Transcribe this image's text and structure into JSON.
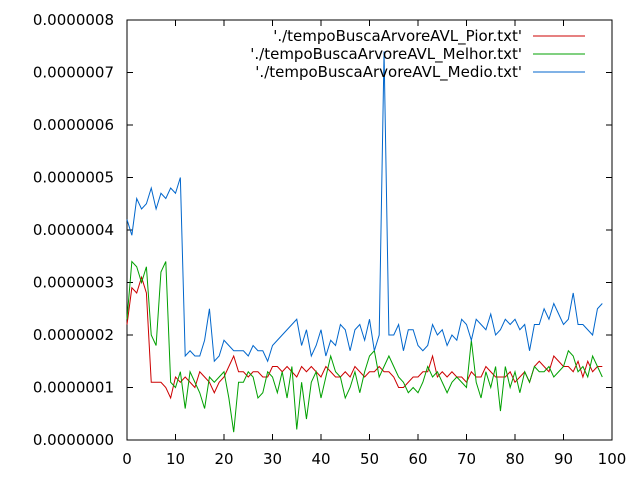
{
  "chart_data": {
    "type": "line",
    "title": "",
    "xlabel": "",
    "ylabel": "",
    "xlim": [
      0,
      100
    ],
    "ylim": [
      0,
      8e-07
    ],
    "x_ticks": [
      0,
      10,
      20,
      30,
      40,
      50,
      60,
      70,
      80,
      90,
      100
    ],
    "x_tick_labels": [
      "0",
      "10",
      "20",
      "30",
      "40",
      "50",
      "60",
      "70",
      "80",
      "90",
      "100"
    ],
    "y_ticks": [
      0,
      1e-07,
      2e-07,
      3e-07,
      4e-07,
      5e-07,
      6e-07,
      7e-07,
      8e-07
    ],
    "y_tick_labels": [
      "0.0000000",
      "0.0000001",
      "0.0000002",
      "0.0000003",
      "0.0000004",
      "0.0000005",
      "0.0000006",
      "0.0000007",
      "0.0000008"
    ],
    "grid": false,
    "legend_position": "top-right",
    "series": [
      {
        "name": "'./tempoBuscaArvoreAVL_Pior.txt'",
        "color": "#cc0000",
        "x": [
          0,
          1,
          2,
          3,
          4,
          5,
          6,
          7,
          8,
          9,
          10,
          11,
          12,
          13,
          14,
          15,
          16,
          17,
          18,
          19,
          20,
          21,
          22,
          23,
          24,
          25,
          26,
          27,
          28,
          29,
          30,
          31,
          32,
          33,
          34,
          35,
          36,
          37,
          38,
          39,
          40,
          41,
          42,
          43,
          44,
          45,
          46,
          47,
          48,
          49,
          50,
          51,
          52,
          53,
          54,
          55,
          56,
          57,
          58,
          59,
          60,
          61,
          62,
          63,
          64,
          65,
          66,
          67,
          68,
          69,
          70,
          71,
          72,
          73,
          74,
          75,
          76,
          77,
          78,
          79,
          80,
          81,
          82,
          83,
          84,
          85,
          86,
          87,
          88,
          89,
          90,
          91,
          92,
          93,
          94,
          95,
          96,
          97,
          98
        ],
        "y": [
          2.2e-07,
          2.9e-07,
          2.8e-07,
          3.1e-07,
          2.8e-07,
          1.1e-07,
          1.1e-07,
          1.1e-07,
          1e-07,
          8e-08,
          1.2e-07,
          1.1e-07,
          1.2e-07,
          1.1e-07,
          1e-07,
          1.3e-07,
          1.2e-07,
          1.1e-07,
          9e-08,
          1.1e-07,
          1.2e-07,
          1.4e-07,
          1.6e-07,
          1.3e-07,
          1.3e-07,
          1.2e-07,
          1.3e-07,
          1.3e-07,
          1.2e-07,
          1.2e-07,
          1.4e-07,
          1.4e-07,
          1.3e-07,
          1.4e-07,
          1.3e-07,
          1.2e-07,
          1.4e-07,
          1.3e-07,
          1.4e-07,
          1.3e-07,
          1.2e-07,
          1.4e-07,
          1.3e-07,
          1.2e-07,
          1.2e-07,
          1.3e-07,
          1.2e-07,
          1.4e-07,
          1.3e-07,
          1.2e-07,
          1.3e-07,
          1.3e-07,
          1.4e-07,
          1.3e-07,
          1.3e-07,
          1.2e-07,
          1e-07,
          1e-07,
          1.1e-07,
          1.2e-07,
          1.2e-07,
          1.3e-07,
          1.3e-07,
          1.6e-07,
          1.2e-07,
          1.3e-07,
          1.2e-07,
          1.3e-07,
          1.2e-07,
          1.2e-07,
          1.1e-07,
          1.3e-07,
          1.2e-07,
          1.2e-07,
          1.4e-07,
          1.3e-07,
          1.2e-07,
          1.2e-07,
          1.2e-07,
          1.3e-07,
          1.1e-07,
          1.2e-07,
          1.3e-07,
          1.1e-07,
          1.4e-07,
          1.5e-07,
          1.4e-07,
          1.3e-07,
          1.6e-07,
          1.5e-07,
          1.4e-07,
          1.4e-07,
          1.3e-07,
          1.5e-07,
          1.2e-07,
          1.5e-07,
          1.3e-07,
          1.4e-07,
          1.4e-07
        ]
      },
      {
        "name": "'./tempoBuscaArvoreAVL_Melhor.txt'",
        "color": "#00a000",
        "x": [
          0,
          1,
          2,
          3,
          4,
          5,
          6,
          7,
          8,
          9,
          10,
          11,
          12,
          13,
          14,
          15,
          16,
          17,
          18,
          19,
          20,
          21,
          22,
          23,
          24,
          25,
          26,
          27,
          28,
          29,
          30,
          31,
          32,
          33,
          34,
          35,
          36,
          37,
          38,
          39,
          40,
          41,
          42,
          43,
          44,
          45,
          46,
          47,
          48,
          49,
          50,
          51,
          52,
          53,
          54,
          55,
          56,
          57,
          58,
          59,
          60,
          61,
          62,
          63,
          64,
          65,
          66,
          67,
          68,
          69,
          70,
          71,
          72,
          73,
          74,
          75,
          76,
          77,
          78,
          79,
          80,
          81,
          82,
          83,
          84,
          85,
          86,
          87,
          88,
          89,
          90,
          91,
          92,
          93,
          94,
          95,
          96,
          97,
          98
        ],
        "y": [
          2.3e-07,
          3.4e-07,
          3.3e-07,
          3e-07,
          3.3e-07,
          2e-07,
          1.8e-07,
          3.2e-07,
          3.4e-07,
          1.1e-07,
          1e-07,
          1.3e-07,
          6e-08,
          1.3e-07,
          1.1e-07,
          9e-08,
          6e-08,
          1.2e-07,
          1.1e-07,
          1.2e-07,
          1.3e-07,
          8e-08,
          1.5e-08,
          1.1e-07,
          1.1e-07,
          1.3e-07,
          1.2e-07,
          8e-08,
          9e-08,
          1.3e-07,
          1.2e-07,
          9e-08,
          1.3e-07,
          8e-08,
          1.4e-07,
          2e-08,
          1.1e-07,
          4e-08,
          1.1e-07,
          1.3e-07,
          8e-08,
          1.2e-07,
          1.6e-07,
          1.3e-07,
          1.2e-07,
          8e-08,
          1e-07,
          1.3e-07,
          9e-08,
          1.3e-07,
          1.6e-07,
          1.7e-07,
          1.2e-07,
          1.4e-07,
          1.6e-07,
          1.4e-07,
          1.2e-07,
          1.1e-07,
          9e-08,
          1e-07,
          9e-08,
          1.1e-07,
          1.4e-07,
          1.2e-07,
          1.3e-07,
          1.1e-07,
          9e-08,
          1.1e-07,
          1.2e-07,
          1.1e-07,
          1e-07,
          1.9e-07,
          1.1e-07,
          8e-08,
          1.3e-07,
          1e-07,
          1.4e-07,
          5.5e-08,
          1.4e-07,
          1e-07,
          1.3e-07,
          9e-08,
          1.3e-07,
          1.1e-07,
          1.4e-07,
          1.3e-07,
          1.3e-07,
          1.4e-07,
          1.2e-07,
          1.3e-07,
          1.4e-07,
          1.7e-07,
          1.6e-07,
          1.3e-07,
          1.4e-07,
          1.2e-07,
          1.6e-07,
          1.4e-07,
          1.2e-07
        ]
      },
      {
        "name": "'./tempoBuscaArvoreAVL_Medio.txt'",
        "color": "#0066cc",
        "x": [
          0,
          1,
          2,
          3,
          4,
          5,
          6,
          7,
          8,
          9,
          10,
          11,
          12,
          13,
          14,
          15,
          16,
          17,
          18,
          19,
          20,
          21,
          22,
          23,
          24,
          25,
          26,
          27,
          28,
          29,
          30,
          31,
          32,
          33,
          34,
          35,
          36,
          37,
          38,
          39,
          40,
          41,
          42,
          43,
          44,
          45,
          46,
          47,
          48,
          49,
          50,
          51,
          52,
          53,
          54,
          55,
          56,
          57,
          58,
          59,
          60,
          61,
          62,
          63,
          64,
          65,
          66,
          67,
          68,
          69,
          70,
          71,
          72,
          73,
          74,
          75,
          76,
          77,
          78,
          79,
          80,
          81,
          82,
          83,
          84,
          85,
          86,
          87,
          88,
          89,
          90,
          91,
          92,
          93,
          94,
          95,
          96,
          97,
          98
        ],
        "y": [
          4.2e-07,
          3.9e-07,
          4.6e-07,
          4.4e-07,
          4.5e-07,
          4.8e-07,
          4.4e-07,
          4.7e-07,
          4.6e-07,
          4.8e-07,
          4.7e-07,
          5e-07,
          1.6e-07,
          1.7e-07,
          1.6e-07,
          1.6e-07,
          1.9e-07,
          2.5e-07,
          1.5e-07,
          1.6e-07,
          1.9e-07,
          1.8e-07,
          1.7e-07,
          1.7e-07,
          1.7e-07,
          1.6e-07,
          1.8e-07,
          1.7e-07,
          1.7e-07,
          1.5e-07,
          1.8e-07,
          1.9e-07,
          2e-07,
          2.1e-07,
          2.2e-07,
          2.3e-07,
          1.8e-07,
          2.1e-07,
          1.6e-07,
          1.8e-07,
          2.1e-07,
          1.6e-07,
          1.9e-07,
          1.8e-07,
          2.2e-07,
          2.1e-07,
          1.7e-07,
          2.1e-07,
          2.2e-07,
          1.9e-07,
          2.3e-07,
          1.7e-07,
          2e-07,
          7.4e-07,
          2e-07,
          2e-07,
          2.2e-07,
          1.7e-07,
          2.1e-07,
          2.1e-07,
          1.8e-07,
          1.7e-07,
          1.8e-07,
          2.2e-07,
          2e-07,
          2.1e-07,
          1.8e-07,
          2e-07,
          1.9e-07,
          2.3e-07,
          2.2e-07,
          1.9e-07,
          2.3e-07,
          2.2e-07,
          2.1e-07,
          2.4e-07,
          2e-07,
          2.1e-07,
          2.3e-07,
          2.2e-07,
          2.3e-07,
          2.1e-07,
          2.2e-07,
          1.7e-07,
          2.2e-07,
          2.2e-07,
          2.5e-07,
          2.3e-07,
          2.6e-07,
          2.4e-07,
          2.2e-07,
          2.3e-07,
          2.8e-07,
          2.2e-07,
          2.2e-07,
          2.1e-07,
          2e-07,
          2.5e-07,
          2.6e-07
        ]
      }
    ]
  }
}
